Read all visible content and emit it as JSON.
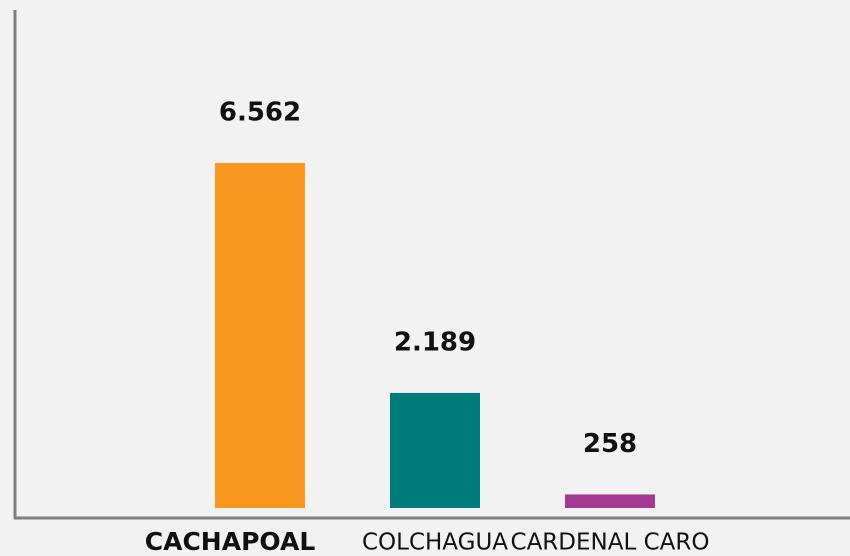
{
  "chart_data": {
    "type": "bar",
    "categories": [
      "CACHAPOAL",
      "COLCHAGUA",
      "CARDENAL CARO"
    ],
    "values": [
      6562,
      2189,
      258
    ],
    "value_labels": [
      "6.562",
      "2.189",
      "258"
    ],
    "colors": [
      "#f7971f",
      "#007b7b",
      "#a43a93"
    ]
  }
}
